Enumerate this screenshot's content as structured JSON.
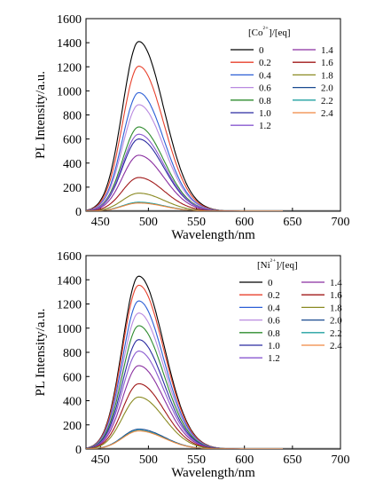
{
  "chart_data": [
    {
      "type": "line",
      "xlabel": "Wavelength/nm",
      "ylabel": "PL Intensity/a.u.",
      "xlim": [
        435,
        700
      ],
      "ylim": [
        0,
        1600
      ],
      "xticks": [
        450,
        500,
        550,
        600,
        650,
        700
      ],
      "yticks": [
        0,
        200,
        400,
        600,
        800,
        1000,
        1200,
        1400,
        1600
      ],
      "legend_title": "[Co²⁺]/[eq]",
      "legend_placement": "top-right",
      "peak_x": 490,
      "series": [
        {
          "name": "0",
          "color": "#000000",
          "peak": 1410
        },
        {
          "name": "0.2",
          "color": "#e8412c",
          "peak": 1205
        },
        {
          "name": "0.4",
          "color": "#2c5fd6",
          "peak": 985
        },
        {
          "name": "0.6",
          "color": "#b98ae0",
          "peak": 885
        },
        {
          "name": "0.8",
          "color": "#2e8b2e",
          "peak": 700
        },
        {
          "name": "1.0",
          "color": "#2a2aa0",
          "peak": 600
        },
        {
          "name": "1.2",
          "color": "#8a5ad0",
          "peak": 640
        },
        {
          "name": "1.4",
          "color": "#8a2fa0",
          "peak": 465
        },
        {
          "name": "1.6",
          "color": "#a01818",
          "peak": 280
        },
        {
          "name": "1.8",
          "color": "#8a8a22",
          "peak": 150
        },
        {
          "name": "2.0",
          "color": "#1a4a90",
          "peak": 72
        },
        {
          "name": "2.2",
          "color": "#20a0a0",
          "peak": 75
        },
        {
          "name": "2.4",
          "color": "#f08840",
          "peak": 68
        }
      ]
    },
    {
      "type": "line",
      "xlabel": "Wavelength/nm",
      "ylabel": "PL Intensity/a.u.",
      "xlim": [
        435,
        700
      ],
      "ylim": [
        0,
        1600
      ],
      "xticks": [
        450,
        500,
        550,
        600,
        650,
        700
      ],
      "yticks": [
        0,
        200,
        400,
        600,
        800,
        1000,
        1200,
        1400,
        1600
      ],
      "legend_title": "[Ni²⁺]/[eq]",
      "legend_placement": "top-right",
      "peak_x": 490,
      "series": [
        {
          "name": "0",
          "color": "#000000",
          "peak": 1430
        },
        {
          "name": "0.2",
          "color": "#e8412c",
          "peak": 1355
        },
        {
          "name": "0.4",
          "color": "#2c5fd6",
          "peak": 1225
        },
        {
          "name": "0.6",
          "color": "#b98ae0",
          "peak": 1125
        },
        {
          "name": "0.8",
          "color": "#2e8b2e",
          "peak": 1020
        },
        {
          "name": "1.0",
          "color": "#2a2aa0",
          "peak": 905
        },
        {
          "name": "1.2",
          "color": "#8a5ad0",
          "peak": 810
        },
        {
          "name": "1.4",
          "color": "#8a2fa0",
          "peak": 690
        },
        {
          "name": "1.6",
          "color": "#a01818",
          "peak": 540
        },
        {
          "name": "1.8",
          "color": "#8a8a22",
          "peak": 430
        },
        {
          "name": "2.0",
          "color": "#1a4a90",
          "peak": 165
        },
        {
          "name": "2.2",
          "color": "#20a0a0",
          "peak": 155
        },
        {
          "name": "2.4",
          "color": "#f08840",
          "peak": 150
        }
      ]
    }
  ]
}
